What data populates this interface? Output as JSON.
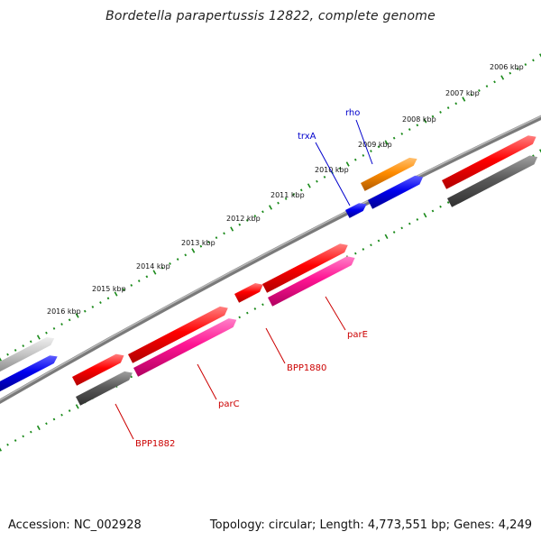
{
  "title": "Bordetella parapertussis 12822, complete genome",
  "footer": {
    "accession": "Accession: NC_002928",
    "topology": "Topology: circular; Length: 4,773,551 bp; Genes: 4,249"
  },
  "colors": {
    "backbone": "#808080",
    "scale_tick": "#1a8a1a",
    "gene_forward": "#ff0000",
    "gene_pink": "#ff1493",
    "gene_blue": "#0000ee",
    "gene_orange": "#ff8c00",
    "gene_gray": "#5a5a5a",
    "gene_light_gray": "#c8c8c8",
    "label_red": "#cc0000",
    "label_blue": "#0000cc"
  },
  "scale_labels": [
    "2006 kbp",
    "2007 kbp",
    "2008 kbp",
    "2009 kbp",
    "2010 kbp",
    "2011 kbp",
    "2012 kbp",
    "2013 kbp",
    "2014 kbp",
    "2015 kbp",
    "2016 kbp"
  ],
  "gene_labels": [
    {
      "name": "rho",
      "color": "blue"
    },
    {
      "name": "trxA",
      "color": "blue"
    },
    {
      "name": "parE",
      "color": "red"
    },
    {
      "name": "BPP1880",
      "color": "red"
    },
    {
      "name": "parC",
      "color": "red"
    },
    {
      "name": "BPP1882",
      "color": "red"
    }
  ]
}
